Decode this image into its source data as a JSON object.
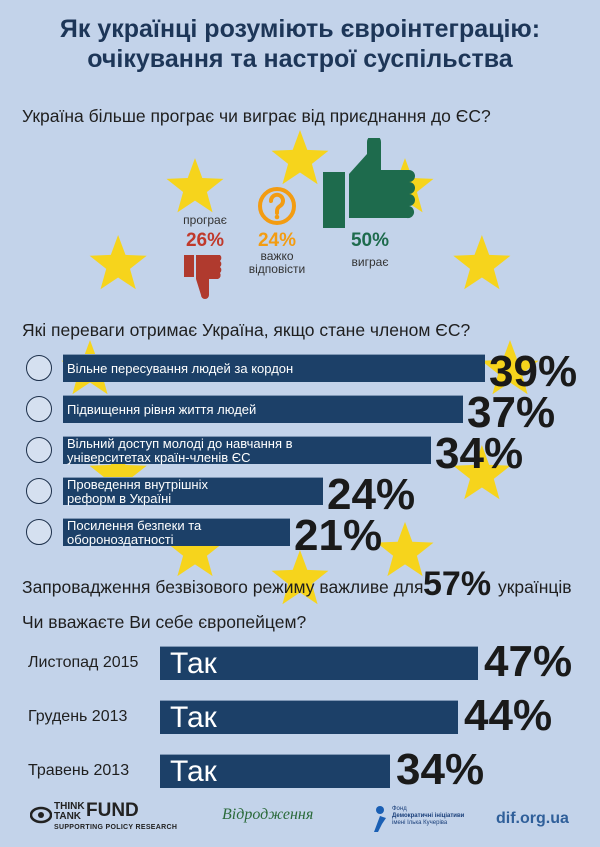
{
  "title": {
    "line1": "Як українці розуміють євроінтеграцію:",
    "line2": "очікування  та настрої суспільства"
  },
  "section1": {
    "question": "Україна більше програє чи виграє від приєднання до ЄС?",
    "lose": {
      "label": "програє",
      "value": "26%",
      "color": "#c0392b",
      "icon": "thumbs-down-icon"
    },
    "hard": {
      "label": "важко відповісти",
      "label_line1": "важко",
      "label_line2": "відповісти",
      "value": "24%",
      "color": "#f39c12",
      "icon": "question-icon"
    },
    "win": {
      "label": "виграє",
      "value": "50%",
      "color": "#1e6b4d",
      "icon": "thumbs-up-icon"
    }
  },
  "section2": {
    "question": "Які переваги отримає Україна, якщо стане членом ЄС?",
    "items": [
      {
        "label": "Вільне пересування людей за кордон",
        "value": "39%",
        "icon": "travel-icon"
      },
      {
        "label": "Підвищення рівня життя людей",
        "value": "37%",
        "icon": "house-icon"
      },
      {
        "label_line1": "Вільний доступ молоді  до навчання в",
        "label_line2": "університетах країн-членів ЄС",
        "value": "34%",
        "icon": "graduation-cap-icon"
      },
      {
        "label_line1": "Проведення внутрішніх",
        "label_line2": "реформ в Україні",
        "value": "24%",
        "icon": "ukraine-map-icon"
      },
      {
        "label_line1": "Посилення безпеки  та",
        "label_line2": "обороноздатності",
        "value": "21%",
        "icon": "tank-icon"
      }
    ]
  },
  "visa": {
    "text_before": "Запровадження безвізового режиму важливе для",
    "value": "57%",
    "text_after": "українців"
  },
  "section3": {
    "question": "Чи вважаєте Ви себе європейцем?",
    "rows": [
      {
        "date": "Листопад 2015",
        "answer": "Так",
        "value": "47%"
      },
      {
        "date": "Грудень 2013",
        "answer": "Так",
        "value": "44%"
      },
      {
        "date": "Травень 2013",
        "answer": "Так",
        "value": "34%"
      }
    ]
  },
  "footer": {
    "ttf_line1": "THINK",
    "ttf_line2": "TANK",
    "ttf_fund": "FUND",
    "ttf_sub": "SUPPORTING POLICY RESEARCH",
    "vidrodzhennya": "Відродження",
    "dif_line1": "Фонд",
    "dif_line2": "Демократичні ініціативи",
    "dif_line3": "імені Ілька Кучеріва",
    "url": "dif.org.ua"
  },
  "chart_data": [
    {
      "type": "bar",
      "title": "Україна більше програє чи виграє від приєднання до ЄС?",
      "categories": [
        "програє",
        "важко відповісти",
        "виграє"
      ],
      "values": [
        26,
        24,
        50
      ]
    },
    {
      "type": "bar",
      "title": "Які переваги отримає Україна, якщо стане членом ЄС?",
      "categories": [
        "Вільне пересування людей за кордон",
        "Підвищення рівня життя людей",
        "Вільний доступ молоді  до навчання в університетах країн-членів ЄС",
        "Проведення внутрішніх реформ в Україні",
        "Посилення безпеки  та обороноздатності"
      ],
      "values": [
        39,
        37,
        34,
        24,
        21
      ]
    },
    {
      "type": "bar",
      "title": "Чи вважаєте Ви себе європейцем?",
      "categories": [
        "Листопад 2015",
        "Грудень 2013",
        "Травень 2013"
      ],
      "values": [
        47,
        44,
        34
      ]
    }
  ]
}
